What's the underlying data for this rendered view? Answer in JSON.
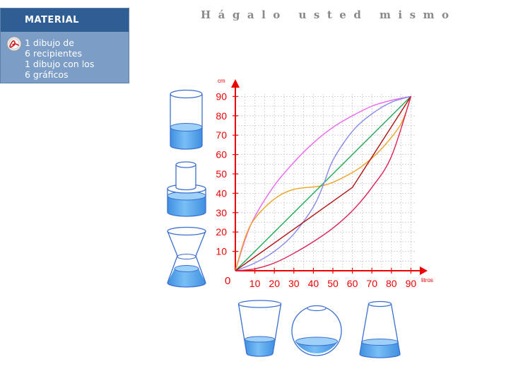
{
  "header": {
    "title": "Hágalo usted mismo"
  },
  "material": {
    "heading": "MATERIAL",
    "icon": "pdf-document-icon",
    "lines": [
      "1 dibujo de",
      "6 recipientes",
      "1 dibujo con los",
      "6 gráficos"
    ]
  },
  "chart_data": {
    "type": "line",
    "ylabel": "cm",
    "xlabel": "litros",
    "origin_label": "0",
    "xlim": [
      0,
      92
    ],
    "ylim": [
      0,
      92
    ],
    "x_ticks": [
      10,
      20,
      30,
      40,
      50,
      60,
      70,
      80,
      90
    ],
    "y_ticks": [
      10,
      20,
      30,
      40,
      50,
      60,
      70,
      80,
      90
    ],
    "grid": true,
    "series": [
      {
        "color": "#ee66ee",
        "points": [
          [
            0,
            0
          ],
          [
            5,
            16
          ],
          [
            10,
            28
          ],
          [
            20,
            44
          ],
          [
            30,
            56
          ],
          [
            40,
            66
          ],
          [
            50,
            74
          ],
          [
            60,
            80
          ],
          [
            70,
            85
          ],
          [
            80,
            88
          ],
          [
            90,
            90
          ]
        ]
      },
      {
        "color": "#f0a020",
        "points": [
          [
            0,
            0
          ],
          [
            5,
            17
          ],
          [
            10,
            27
          ],
          [
            20,
            37
          ],
          [
            30,
            42
          ],
          [
            45,
            44
          ],
          [
            55,
            48
          ],
          [
            65,
            54
          ],
          [
            75,
            63
          ],
          [
            85,
            76
          ],
          [
            90,
            90
          ]
        ]
      },
      {
        "color": "#22aa55",
        "points": [
          [
            0,
            0
          ],
          [
            90,
            90
          ]
        ]
      },
      {
        "color": "#8888ee",
        "points": [
          [
            0,
            0
          ],
          [
            10,
            4
          ],
          [
            20,
            10
          ],
          [
            30,
            19
          ],
          [
            40,
            33
          ],
          [
            45,
            44
          ],
          [
            50,
            57
          ],
          [
            60,
            72
          ],
          [
            70,
            81
          ],
          [
            80,
            87
          ],
          [
            90,
            90
          ]
        ]
      },
      {
        "color": "#b01010",
        "points": [
          [
            0,
            0
          ],
          [
            60,
            43
          ],
          [
            90,
            90
          ]
        ]
      },
      {
        "color": "#dd2255",
        "points": [
          [
            0,
            0
          ],
          [
            10,
            1
          ],
          [
            20,
            4
          ],
          [
            30,
            9
          ],
          [
            40,
            15
          ],
          [
            50,
            22
          ],
          [
            60,
            31
          ],
          [
            70,
            43
          ],
          [
            80,
            59
          ],
          [
            90,
            90
          ]
        ]
      }
    ]
  },
  "containers": [
    {
      "name": "cylinder-container-icon",
      "fill_level": 0.45
    },
    {
      "name": "stepped-cylinder-container-icon",
      "fill_level": 0.75
    },
    {
      "name": "hourglass-container-icon",
      "fill_level": 0.4
    },
    {
      "name": "tapered-glass-container-icon",
      "fill_level": 0.35
    },
    {
      "name": "sphere-container-icon",
      "fill_level": 0.3
    },
    {
      "name": "flask-cone-container-icon",
      "fill_level": 0.3
    }
  ],
  "colors": {
    "axis": "#ee0000",
    "grid": "#cccccc",
    "container_outline": "#3a6fd0",
    "water": "#5aa8f0",
    "water_top": "#9fd0f8"
  }
}
